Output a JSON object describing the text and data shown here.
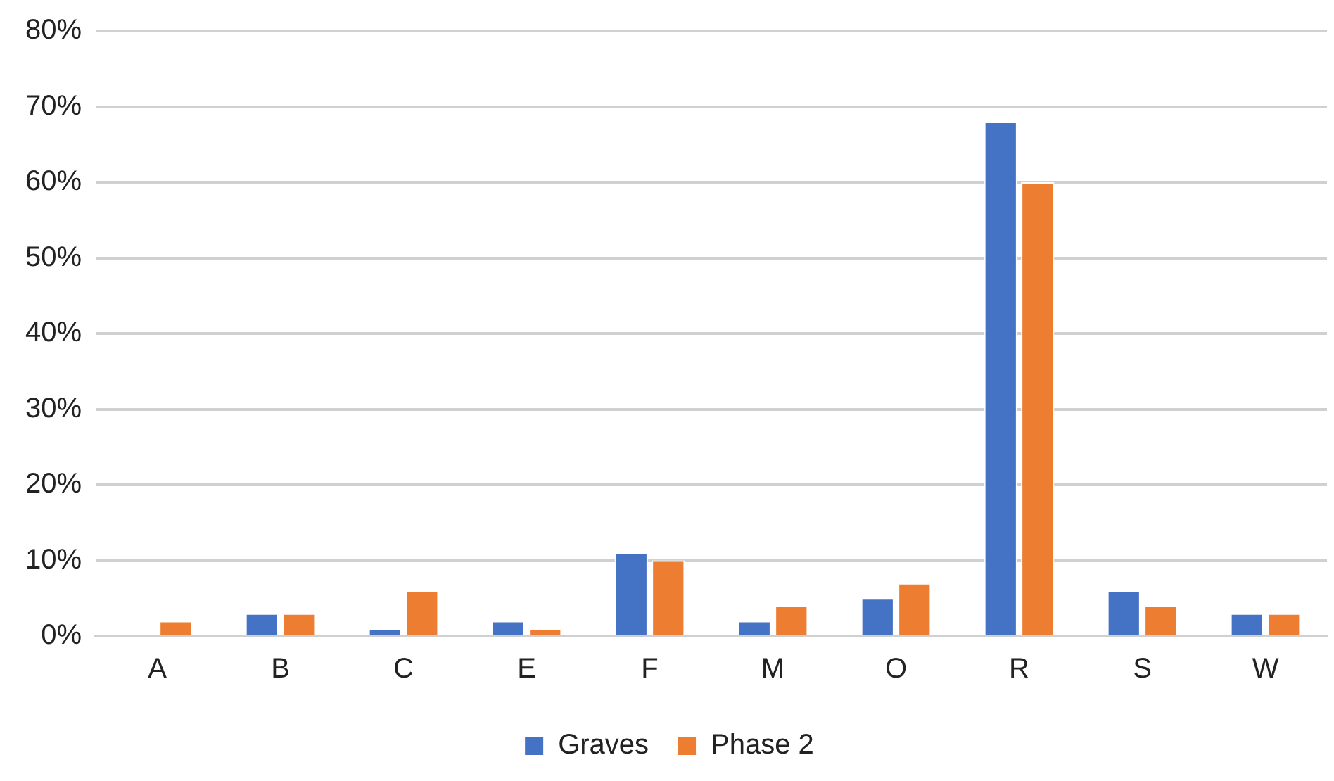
{
  "chart_data": {
    "type": "bar",
    "categories": [
      "A",
      "B",
      "C",
      "E",
      "F",
      "M",
      "O",
      "R",
      "S",
      "W"
    ],
    "series": [
      {
        "name": "Graves",
        "color": "#4472c4",
        "values": [
          0,
          3,
          1,
          2,
          11,
          2,
          5,
          68,
          6,
          3
        ]
      },
      {
        "name": "Phase 2",
        "color": "#ed7d31",
        "values": [
          2,
          3,
          6,
          1,
          10,
          4,
          7,
          60,
          4,
          3
        ]
      }
    ],
    "ylim": [
      0,
      80
    ],
    "yticks": [
      {
        "value": 0,
        "label": "0%"
      },
      {
        "value": 10,
        "label": "10%"
      },
      {
        "value": 20,
        "label": "20%"
      },
      {
        "value": 30,
        "label": "30%"
      },
      {
        "value": 40,
        "label": "40%"
      },
      {
        "value": 50,
        "label": "50%"
      },
      {
        "value": 60,
        "label": "60%"
      },
      {
        "value": 70,
        "label": "70%"
      },
      {
        "value": 80,
        "label": "80%"
      }
    ],
    "grid": "y",
    "legend": "bottom"
  }
}
